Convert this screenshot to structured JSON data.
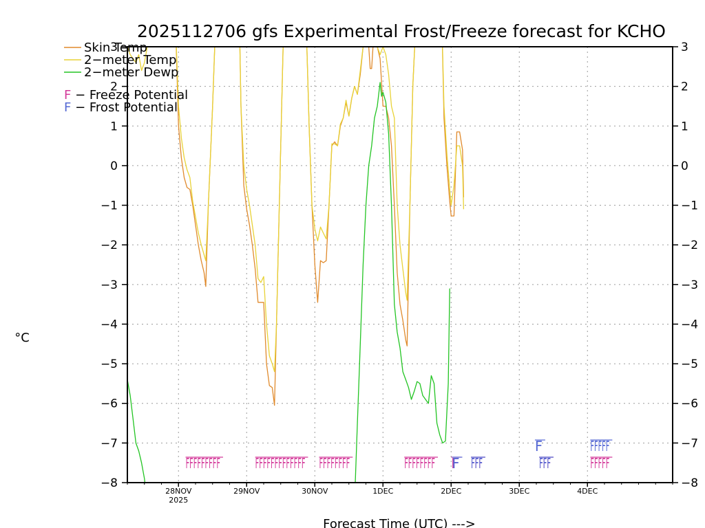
{
  "chart_data": {
    "type": "line",
    "title": "2025112706 gfs Experimental Frost/Freeze forecast for KCHO",
    "xlabel": "Forecast Time (UTC) --->",
    "ylabel": "°C",
    "ylim": [
      -8,
      3
    ],
    "xlim_hours": [
      0,
      192
    ],
    "grid": true,
    "yticks": [
      -8,
      -7,
      -6,
      -5,
      -4,
      -3,
      -2,
      -1,
      0,
      1,
      2,
      3
    ],
    "ytick_labels_left": [
      "−8",
      "−7",
      "−6",
      "−5",
      "−4",
      "−3",
      "−2",
      "−1",
      "0",
      "1",
      "2",
      "3"
    ],
    "ytick_labels_right": [
      "−8",
      "−7",
      "−6",
      "−5",
      "−4",
      "−3",
      "−2",
      "−1",
      "0",
      "1",
      "2",
      "3"
    ],
    "xticks": [
      {
        "label": "28NOV",
        "sub": "2025",
        "hour": 18
      },
      {
        "label": "29NOV",
        "sub": "",
        "hour": 42
      },
      {
        "label": "30NOV",
        "sub": "",
        "hour": 66
      },
      {
        "label": "1DEC",
        "sub": "",
        "hour": 90
      },
      {
        "label": "2DEC",
        "sub": "",
        "hour": 114
      },
      {
        "label": "3DEC",
        "sub": "",
        "hour": 138
      },
      {
        "label": "4DEC",
        "sub": "",
        "hour": 162
      }
    ],
    "legend": {
      "position": "top-left",
      "entries": [
        {
          "label": "Skin Temp",
          "color": "#e08a2c"
        },
        {
          "label": "2−meter Temp",
          "color": "#e8d236"
        },
        {
          "label": "2−meter Dewp",
          "color": "#22c422"
        }
      ],
      "flag_key": [
        {
          "label": "F − Freeze Potential",
          "color": "#d43a9a"
        },
        {
          "label": "F − Frost Potential",
          "color": "#5468d4"
        }
      ]
    },
    "series": [
      {
        "name": "Skin Temp",
        "color": "#e08a2c",
        "points": [
          [
            17,
            3.5
          ],
          [
            18,
            1.0
          ],
          [
            19,
            0.2
          ],
          [
            20,
            -0.3
          ],
          [
            21,
            -0.55
          ],
          [
            22,
            -0.6
          ],
          [
            23,
            -1.0
          ],
          [
            24,
            -1.5
          ],
          [
            25,
            -2.0
          ],
          [
            26,
            -2.4
          ],
          [
            27,
            -2.7
          ],
          [
            27.6,
            -3.05
          ],
          [
            28.5,
            -1.0
          ],
          [
            30,
            1.5
          ],
          [
            31,
            3.5
          ],
          [
            39.5,
            3.5
          ],
          [
            40,
            1.5
          ],
          [
            41,
            -0.5
          ],
          [
            42,
            -1.1
          ],
          [
            43,
            -1.5
          ],
          [
            44,
            -2.0
          ],
          [
            45,
            -2.6
          ],
          [
            46,
            -3.45
          ],
          [
            47,
            -3.45
          ],
          [
            48,
            -3.45
          ],
          [
            49,
            -5.0
          ],
          [
            50,
            -5.55
          ],
          [
            51,
            -5.6
          ],
          [
            51.8,
            -6.05
          ],
          [
            52.5,
            -4.0
          ],
          [
            53.5,
            -1.0
          ],
          [
            55,
            3.5
          ],
          [
            63,
            3.5
          ],
          [
            64,
            1.0
          ],
          [
            65,
            -1.0
          ],
          [
            66,
            -2.5
          ],
          [
            67,
            -3.45
          ],
          [
            68,
            -2.4
          ],
          [
            69,
            -2.45
          ],
          [
            70,
            -2.4
          ],
          [
            71,
            -1.0
          ],
          [
            72,
            0.5
          ],
          [
            73,
            0.6
          ],
          [
            74,
            0.5
          ],
          [
            75,
            1.0
          ],
          [
            76,
            1.2
          ],
          [
            77,
            1.6
          ],
          [
            78,
            1.25
          ],
          [
            79,
            1.7
          ],
          [
            80,
            2.0
          ],
          [
            81,
            1.8
          ],
          [
            82,
            2.3
          ],
          [
            83,
            3.0
          ],
          [
            84,
            3.0
          ],
          [
            85,
            3.0
          ],
          [
            85.5,
            2.45
          ],
          [
            86,
            2.45
          ],
          [
            86.5,
            3.0
          ],
          [
            88,
            3.0
          ],
          [
            89,
            2.7
          ],
          [
            90,
            1.5
          ],
          [
            91,
            1.5
          ],
          [
            92,
            1.2
          ],
          [
            93,
            0.5
          ],
          [
            94,
            -1.0
          ],
          [
            95,
            -2.7
          ],
          [
            96,
            -3.5
          ],
          [
            97,
            -3.9
          ],
          [
            98,
            -4.4
          ],
          [
            98.5,
            -4.55
          ],
          [
            99.5,
            -1.0
          ],
          [
            100.5,
            2.0
          ],
          [
            101.5,
            3.5
          ],
          [
            110.8,
            3.5
          ],
          [
            111.5,
            1.2
          ],
          [
            112.5,
            0.0
          ],
          [
            113.5,
            -0.9
          ],
          [
            114,
            -1.27
          ],
          [
            115,
            -1.27
          ],
          [
            116,
            0.85
          ],
          [
            117,
            0.85
          ],
          [
            118,
            0.4
          ],
          [
            118.4,
            -0.8
          ]
        ]
      },
      {
        "name": "2−meter Temp",
        "color": "#e8d236",
        "points": [
          [
            0,
            3.0
          ],
          [
            1,
            2.8
          ],
          [
            2,
            2.7
          ],
          [
            3,
            2.6
          ],
          [
            4,
            2.8
          ],
          [
            5,
            2.4
          ],
          [
            6,
            2.6
          ],
          [
            7,
            3.0
          ],
          [
            17,
            3.5
          ],
          [
            18,
            1.5
          ],
          [
            19,
            0.7
          ],
          [
            20,
            0.2
          ],
          [
            21,
            -0.1
          ],
          [
            22,
            -0.3
          ],
          [
            23,
            -0.9
          ],
          [
            24,
            -1.3
          ],
          [
            25,
            -1.7
          ],
          [
            26,
            -2.0
          ],
          [
            27,
            -2.25
          ],
          [
            27.6,
            -2.4
          ],
          [
            28.5,
            -1.0
          ],
          [
            30,
            1.5
          ],
          [
            31,
            3.5
          ],
          [
            39.5,
            3.5
          ],
          [
            40,
            1.5
          ],
          [
            41,
            0.0
          ],
          [
            42,
            -0.6
          ],
          [
            43,
            -1.0
          ],
          [
            44,
            -1.5
          ],
          [
            45,
            -2.0
          ],
          [
            46,
            -2.85
          ],
          [
            47,
            -2.95
          ],
          [
            48,
            -2.8
          ],
          [
            49,
            -4.0
          ],
          [
            50,
            -4.8
          ],
          [
            51,
            -5.0
          ],
          [
            51.8,
            -5.2
          ],
          [
            52.5,
            -4.0
          ],
          [
            53.5,
            -1.0
          ],
          [
            55,
            3.5
          ],
          [
            63,
            3.5
          ],
          [
            64,
            1.0
          ],
          [
            65,
            -1.0
          ],
          [
            66,
            -1.6
          ],
          [
            67,
            -1.9
          ],
          [
            68,
            -1.55
          ],
          [
            69,
            -1.7
          ],
          [
            70,
            -1.85
          ],
          [
            71,
            -1.0
          ],
          [
            72,
            0.55
          ],
          [
            73,
            0.55
          ],
          [
            74,
            0.5
          ],
          [
            75,
            1.05
          ],
          [
            76,
            1.2
          ],
          [
            77,
            1.65
          ],
          [
            78,
            1.25
          ],
          [
            79,
            1.7
          ],
          [
            80,
            2.0
          ],
          [
            81,
            1.8
          ],
          [
            82,
            2.4
          ],
          [
            83,
            3.0
          ],
          [
            84,
            3.0
          ],
          [
            85,
            3.0
          ],
          [
            86,
            3.0
          ],
          [
            88,
            3.0
          ],
          [
            89,
            2.8
          ],
          [
            90,
            3.0
          ],
          [
            91,
            2.8
          ],
          [
            92,
            2.3
          ],
          [
            93,
            1.5
          ],
          [
            94,
            1.2
          ],
          [
            95,
            -1.0
          ],
          [
            96,
            -2.0
          ],
          [
            97,
            -2.6
          ],
          [
            98,
            -3.2
          ],
          [
            98.5,
            -3.4
          ],
          [
            99.5,
            -1.0
          ],
          [
            100.5,
            2.0
          ],
          [
            101.5,
            3.5
          ],
          [
            110.8,
            3.5
          ],
          [
            111.5,
            1.5
          ],
          [
            112.5,
            0.3
          ],
          [
            113.5,
            -0.6
          ],
          [
            114,
            -1.0
          ],
          [
            115,
            -0.5
          ],
          [
            116,
            0.5
          ],
          [
            117,
            0.5
          ],
          [
            118,
            0.0
          ],
          [
            118.4,
            -1.1
          ]
        ]
      },
      {
        "name": "2−meter Dewp",
        "color": "#22c422",
        "points": [
          [
            0,
            -5.4
          ],
          [
            1,
            -5.8
          ],
          [
            2,
            -6.4
          ],
          [
            3,
            -7.0
          ],
          [
            4,
            -7.2
          ],
          [
            5,
            -7.5
          ],
          [
            6,
            -7.9
          ],
          [
            7,
            -8.5
          ],
          [
            80,
            -8.5
          ],
          [
            81,
            -6.5
          ],
          [
            82,
            -4.5
          ],
          [
            83,
            -2.5
          ],
          [
            84,
            -1.0
          ],
          [
            85,
            0.0
          ],
          [
            86,
            0.5
          ],
          [
            87,
            1.2
          ],
          [
            88,
            1.5
          ],
          [
            89,
            2.1
          ],
          [
            89.5,
            1.75
          ],
          [
            90,
            1.85
          ],
          [
            91,
            1.6
          ],
          [
            92,
            0.8
          ],
          [
            93,
            -1.0
          ],
          [
            94,
            -3.5
          ],
          [
            95,
            -4.2
          ],
          [
            96,
            -4.6
          ],
          [
            97,
            -5.2
          ],
          [
            98,
            -5.4
          ],
          [
            99,
            -5.6
          ],
          [
            100,
            -5.9
          ],
          [
            101,
            -5.7
          ],
          [
            102,
            -5.45
          ],
          [
            103,
            -5.5
          ],
          [
            104,
            -5.8
          ],
          [
            105,
            -5.9
          ],
          [
            106,
            -6.0
          ],
          [
            107,
            -5.3
          ],
          [
            108,
            -5.5
          ],
          [
            109,
            -6.5
          ],
          [
            110,
            -6.8
          ],
          [
            111,
            -7.0
          ],
          [
            112,
            -6.95
          ],
          [
            113,
            -5.5
          ],
          [
            113.5,
            -3.1
          ]
        ]
      }
    ],
    "flags": [
      {
        "row": "freeze",
        "text": "FFFFFFFFF",
        "hour": 20.5,
        "color": "#d43a9a"
      },
      {
        "row": "freeze",
        "text": "FFFFFFFFFFFFF",
        "hour": 45.0,
        "color": "#d43a9a"
      },
      {
        "row": "freeze",
        "text": "FFFFFFFF",
        "hour": 67.5,
        "color": "#d43a9a"
      },
      {
        "row": "freeze",
        "text": "FFFFFFFF",
        "hour": 97.5,
        "color": "#d43a9a"
      },
      {
        "row": "freeze",
        "text": "F",
        "hour": 114.0,
        "color": "#d43a9a"
      },
      {
        "row": "freeze",
        "text": "FFF",
        "hour": 121.0,
        "color": "#d43a9a"
      },
      {
        "row": "freeze",
        "text": "FFF",
        "hour": 145.0,
        "color": "#d43a9a"
      },
      {
        "row": "freeze",
        "text": "FFFFF",
        "hour": 163.0,
        "color": "#d43a9a"
      },
      {
        "row": "freeze",
        "text": "F",
        "hour": 114.3,
        "color": "#5468d4"
      },
      {
        "row": "freeze",
        "text": "FFF",
        "hour": 121.0,
        "color": "#5468d4"
      },
      {
        "row": "freeze",
        "text": "FFF",
        "hour": 145.0,
        "color": "#5468d4"
      },
      {
        "row": "frost",
        "text": "F",
        "hour": 143.5,
        "color": "#5468d4"
      },
      {
        "row": "frost",
        "text": "FFFFF",
        "hour": 163.0,
        "color": "#5468d4"
      }
    ]
  }
}
